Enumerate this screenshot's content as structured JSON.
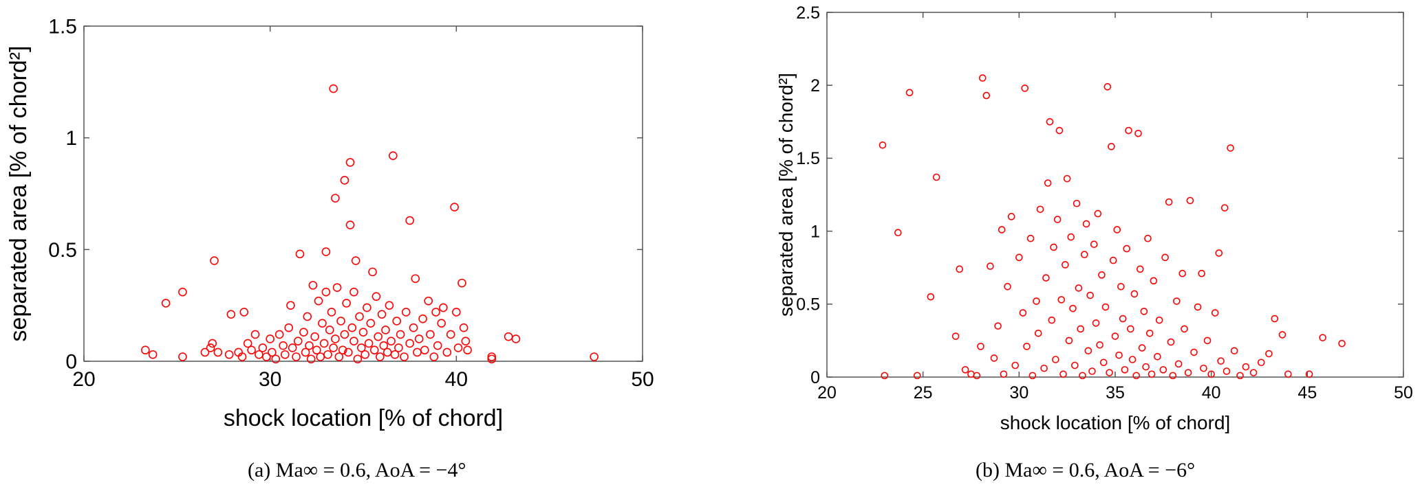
{
  "chart_data": [
    {
      "type": "scatter",
      "xlabel": "shock location [% of chord]",
      "ylabel": "separated area  [% of chord²]",
      "xlim": [
        20,
        50
      ],
      "ylim": [
        0,
        1.5
      ],
      "xticks": [
        20,
        30,
        40,
        50
      ],
      "yticks": [
        0,
        0.5,
        1,
        1.5
      ],
      "yticklabels": [
        "0",
        "0.5",
        "1",
        "1.5"
      ],
      "marker": "open-circle",
      "marker_color": "#ff0000",
      "grid": false,
      "caption": "(a) Ma∞ = 0.6, AoA = −4°",
      "points": [
        [
          23.3,
          0.05
        ],
        [
          23.7,
          0.03
        ],
        [
          24.4,
          0.26
        ],
        [
          25.3,
          0.31
        ],
        [
          25.3,
          0.02
        ],
        [
          26.5,
          0.04
        ],
        [
          26.8,
          0.06
        ],
        [
          26.9,
          0.08
        ],
        [
          27.0,
          0.45
        ],
        [
          27.2,
          0.04
        ],
        [
          27.8,
          0.03
        ],
        [
          27.9,
          0.21
        ],
        [
          28.3,
          0.04
        ],
        [
          28.5,
          0.02
        ],
        [
          28.6,
          0.22
        ],
        [
          28.8,
          0.08
        ],
        [
          29.0,
          0.05
        ],
        [
          29.2,
          0.12
        ],
        [
          29.4,
          0.03
        ],
        [
          29.6,
          0.06
        ],
        [
          29.8,
          0.02
        ],
        [
          30.0,
          0.1
        ],
        [
          30.1,
          0.04
        ],
        [
          30.3,
          0.01
        ],
        [
          30.5,
          0.12
        ],
        [
          30.7,
          0.07
        ],
        [
          30.8,
          0.03
        ],
        [
          31.0,
          0.15
        ],
        [
          31.1,
          0.25
        ],
        [
          31.2,
          0.06
        ],
        [
          31.4,
          0.02
        ],
        [
          31.5,
          0.09
        ],
        [
          31.6,
          0.48
        ],
        [
          31.8,
          0.13
        ],
        [
          31.9,
          0.04
        ],
        [
          32.0,
          0.2
        ],
        [
          32.1,
          0.07
        ],
        [
          32.2,
          0.01
        ],
        [
          32.3,
          0.34
        ],
        [
          32.4,
          0.11
        ],
        [
          32.5,
          0.05
        ],
        [
          32.6,
          0.27
        ],
        [
          32.7,
          0.02
        ],
        [
          32.8,
          0.17
        ],
        [
          32.9,
          0.08
        ],
        [
          33.0,
          0.31
        ],
        [
          33.0,
          0.49
        ],
        [
          33.1,
          0.03
        ],
        [
          33.2,
          0.14
        ],
        [
          33.3,
          0.22
        ],
        [
          33.4,
          1.22
        ],
        [
          33.4,
          0.06
        ],
        [
          33.5,
          0.73
        ],
        [
          33.5,
          0.1
        ],
        [
          33.6,
          0.33
        ],
        [
          33.7,
          0.02
        ],
        [
          33.8,
          0.18
        ],
        [
          33.9,
          0.05
        ],
        [
          34.0,
          0.81
        ],
        [
          34.0,
          0.12
        ],
        [
          34.1,
          0.26
        ],
        [
          34.2,
          0.04
        ],
        [
          34.3,
          0.89
        ],
        [
          34.3,
          0.61
        ],
        [
          34.4,
          0.15
        ],
        [
          34.5,
          0.09
        ],
        [
          34.5,
          0.31
        ],
        [
          34.6,
          0.45
        ],
        [
          34.7,
          0.01
        ],
        [
          34.8,
          0.2
        ],
        [
          34.9,
          0.06
        ],
        [
          35.0,
          0.13
        ],
        [
          35.1,
          0.03
        ],
        [
          35.2,
          0.24
        ],
        [
          35.3,
          0.08
        ],
        [
          35.4,
          0.17
        ],
        [
          35.5,
          0.4
        ],
        [
          35.6,
          0.05
        ],
        [
          35.7,
          0.29
        ],
        [
          35.8,
          0.11
        ],
        [
          35.9,
          0.02
        ],
        [
          36.0,
          0.21
        ],
        [
          36.1,
          0.07
        ],
        [
          36.2,
          0.14
        ],
        [
          36.3,
          0.04
        ],
        [
          36.4,
          0.25
        ],
        [
          36.5,
          0.09
        ],
        [
          36.6,
          0.92
        ],
        [
          36.7,
          0.03
        ],
        [
          36.8,
          0.18
        ],
        [
          36.9,
          0.06
        ],
        [
          37.0,
          0.12
        ],
        [
          37.2,
          0.02
        ],
        [
          37.3,
          0.22
        ],
        [
          37.5,
          0.63
        ],
        [
          37.5,
          0.08
        ],
        [
          37.7,
          0.15
        ],
        [
          37.8,
          0.37
        ],
        [
          37.9,
          0.04
        ],
        [
          38.0,
          0.1
        ],
        [
          38.2,
          0.19
        ],
        [
          38.3,
          0.05
        ],
        [
          38.5,
          0.27
        ],
        [
          38.6,
          0.12
        ],
        [
          38.8,
          0.02
        ],
        [
          38.9,
          0.22
        ],
        [
          39.0,
          0.07
        ],
        [
          39.2,
          0.17
        ],
        [
          39.3,
          0.24
        ],
        [
          39.5,
          0.04
        ],
        [
          39.7,
          0.12
        ],
        [
          39.9,
          0.69
        ],
        [
          40.0,
          0.22
        ],
        [
          40.1,
          0.06
        ],
        [
          40.3,
          0.35
        ],
        [
          40.4,
          0.15
        ],
        [
          40.5,
          0.09
        ],
        [
          40.6,
          0.05
        ],
        [
          41.9,
          0.02
        ],
        [
          41.9,
          0.01
        ],
        [
          42.8,
          0.11
        ],
        [
          43.2,
          0.1
        ],
        [
          47.4,
          0.02
        ]
      ]
    },
    {
      "type": "scatter",
      "xlabel": "shock location [% of chord]",
      "ylabel": "separated area  [% of chord²]",
      "xlim": [
        20,
        50
      ],
      "ylim": [
        0,
        2.5
      ],
      "xticks": [
        20,
        25,
        30,
        35,
        40,
        45,
        50
      ],
      "yticks": [
        0,
        0.5,
        1,
        1.5,
        2,
        2.5
      ],
      "yticklabels": [
        "0",
        "0.5",
        "1",
        "1.5",
        "2",
        "2.5"
      ],
      "marker": "open-circle",
      "marker_color": "#ff0000",
      "grid": false,
      "caption": "(b) Ma∞ = 0.6, AoA = −6°",
      "points": [
        [
          22.9,
          1.59
        ],
        [
          23.0,
          0.01
        ],
        [
          23.7,
          0.99
        ],
        [
          24.3,
          1.95
        ],
        [
          24.7,
          0.01
        ],
        [
          25.4,
          0.55
        ],
        [
          25.7,
          1.37
        ],
        [
          26.7,
          0.28
        ],
        [
          26.9,
          0.74
        ],
        [
          27.2,
          0.05
        ],
        [
          27.5,
          0.02
        ],
        [
          27.8,
          0.01
        ],
        [
          28.0,
          0.21
        ],
        [
          28.1,
          2.05
        ],
        [
          28.3,
          1.93
        ],
        [
          28.5,
          0.76
        ],
        [
          28.7,
          0.13
        ],
        [
          28.9,
          0.35
        ],
        [
          29.1,
          1.01
        ],
        [
          29.2,
          0.02
        ],
        [
          29.4,
          0.62
        ],
        [
          29.6,
          1.1
        ],
        [
          29.8,
          0.08
        ],
        [
          30.0,
          0.82
        ],
        [
          30.2,
          0.44
        ],
        [
          30.3,
          1.98
        ],
        [
          30.4,
          0.21
        ],
        [
          30.6,
          0.95
        ],
        [
          30.7,
          0.01
        ],
        [
          30.9,
          0.52
        ],
        [
          31.0,
          0.3
        ],
        [
          31.1,
          1.15
        ],
        [
          31.3,
          0.06
        ],
        [
          31.4,
          0.68
        ],
        [
          31.5,
          1.33
        ],
        [
          31.6,
          1.75
        ],
        [
          31.7,
          0.39
        ],
        [
          31.8,
          0.89
        ],
        [
          31.9,
          0.12
        ],
        [
          32.0,
          1.08
        ],
        [
          32.1,
          1.69
        ],
        [
          32.2,
          0.53
        ],
        [
          32.3,
          0.02
        ],
        [
          32.4,
          0.77
        ],
        [
          32.5,
          1.36
        ],
        [
          32.6,
          0.25
        ],
        [
          32.7,
          0.96
        ],
        [
          32.8,
          0.47
        ],
        [
          32.9,
          0.08
        ],
        [
          33.0,
          1.19
        ],
        [
          33.1,
          0.61
        ],
        [
          33.2,
          0.33
        ],
        [
          33.3,
          0.01
        ],
        [
          33.4,
          0.84
        ],
        [
          33.5,
          1.05
        ],
        [
          33.6,
          0.18
        ],
        [
          33.7,
          0.56
        ],
        [
          33.8,
          0.04
        ],
        [
          33.9,
          0.91
        ],
        [
          34.0,
          0.37
        ],
        [
          34.1,
          1.12
        ],
        [
          34.2,
          0.22
        ],
        [
          34.3,
          0.7
        ],
        [
          34.4,
          0.1
        ],
        [
          34.5,
          0.48
        ],
        [
          34.6,
          1.99
        ],
        [
          34.7,
          0.03
        ],
        [
          34.8,
          1.58
        ],
        [
          34.9,
          0.8
        ],
        [
          35.0,
          0.28
        ],
        [
          35.1,
          1.01
        ],
        [
          35.2,
          0.15
        ],
        [
          35.3,
          0.62
        ],
        [
          35.4,
          0.4
        ],
        [
          35.5,
          0.05
        ],
        [
          35.6,
          0.88
        ],
        [
          35.7,
          1.69
        ],
        [
          35.8,
          0.33
        ],
        [
          35.9,
          0.12
        ],
        [
          36.0,
          0.57
        ],
        [
          36.1,
          0.01
        ],
        [
          36.2,
          1.67
        ],
        [
          36.3,
          0.74
        ],
        [
          36.4,
          0.2
        ],
        [
          36.5,
          0.45
        ],
        [
          36.6,
          0.07
        ],
        [
          36.7,
          0.95
        ],
        [
          36.8,
          0.3
        ],
        [
          36.9,
          0.02
        ],
        [
          37.0,
          0.66
        ],
        [
          37.2,
          0.14
        ],
        [
          37.3,
          0.39
        ],
        [
          37.5,
          0.05
        ],
        [
          37.6,
          0.82
        ],
        [
          37.8,
          1.2
        ],
        [
          37.9,
          0.24
        ],
        [
          38.0,
          0.01
        ],
        [
          38.2,
          0.52
        ],
        [
          38.3,
          0.09
        ],
        [
          38.5,
          0.71
        ],
        [
          38.6,
          0.33
        ],
        [
          38.8,
          0.03
        ],
        [
          38.9,
          1.21
        ],
        [
          39.1,
          0.17
        ],
        [
          39.3,
          0.48
        ],
        [
          39.5,
          0.71
        ],
        [
          39.6,
          0.06
        ],
        [
          39.8,
          0.25
        ],
        [
          40.0,
          0.02
        ],
        [
          40.2,
          0.44
        ],
        [
          40.4,
          0.85
        ],
        [
          40.5,
          0.11
        ],
        [
          40.7,
          1.16
        ],
        [
          40.8,
          0.04
        ],
        [
          41.0,
          1.57
        ],
        [
          41.2,
          0.18
        ],
        [
          41.5,
          0.01
        ],
        [
          41.8,
          0.07
        ],
        [
          42.2,
          0.03
        ],
        [
          42.6,
          0.1
        ],
        [
          43.0,
          0.16
        ],
        [
          43.3,
          0.4
        ],
        [
          43.7,
          0.29
        ],
        [
          44.0,
          0.02
        ],
        [
          45.1,
          0.02
        ],
        [
          45.8,
          0.27
        ],
        [
          46.8,
          0.23
        ]
      ]
    }
  ]
}
